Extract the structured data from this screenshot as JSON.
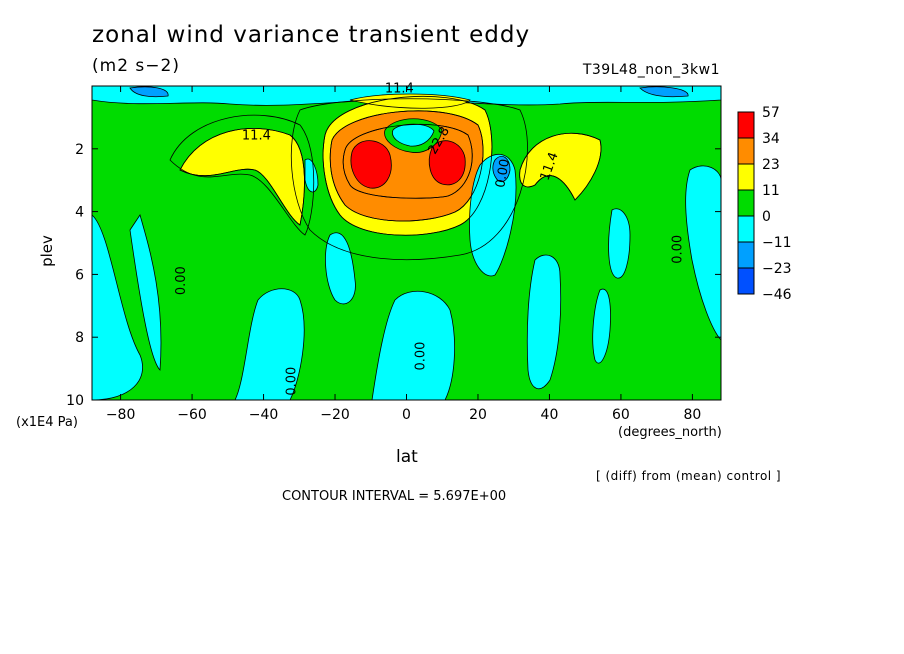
{
  "page": {
    "title": "zonal wind variance transient eddy",
    "units": "(m2 s−2)",
    "run_id": "T39L48_non_3kw1",
    "y_axis_label": "plev",
    "y_axis_multiplier": "(x1E4 Pa)",
    "x_axis_label": "lat",
    "x_axis_units": "(degrees_north)",
    "comparison_note": "[ (diff) from (mean) control ]",
    "contour_interval": "CONTOUR INTERVAL = 5.697E+00"
  },
  "chart_data": {
    "type": "heatmap",
    "title": "zonal wind variance transient eddy",
    "subtitle": "(m2 s−2)",
    "xlabel": "lat",
    "ylabel": "plev",
    "xlim": [
      -88,
      88
    ],
    "ylim": [
      10,
      0
    ],
    "x_ticks": [
      -80,
      -60,
      -40,
      -20,
      0,
      20,
      40,
      60,
      80
    ],
    "y_ticks": [
      2,
      4,
      6,
      8,
      10
    ],
    "colorbar": {
      "levels": [
        "57",
        "34",
        "23",
        "11",
        "0",
        "−11",
        "−23",
        "−46"
      ],
      "bins": [
        {
          "lo": 34,
          "hi": 57,
          "color": "#ff0000"
        },
        {
          "lo": 23,
          "hi": 34,
          "color": "#ff8c00"
        },
        {
          "lo": 11,
          "hi": 23,
          "color": "#ffff00"
        },
        {
          "lo": 0,
          "hi": 11,
          "color": "#00dc00"
        },
        {
          "lo": -11,
          "hi": 0,
          "color": "#00ffff"
        },
        {
          "lo": -23,
          "hi": -11,
          "color": "#00a0ff"
        },
        {
          "lo": -46,
          "hi": -23,
          "color": "#0050ff"
        }
      ]
    },
    "background_level_color": "#00dc00",
    "regions": [
      {
        "level": "11",
        "color": "#ffff00",
        "center": [
          -40,
          2.5
        ],
        "note": "SH subtropical maximum"
      },
      {
        "level": "11",
        "color": "#ffff00",
        "center": [
          40,
          2.5
        ],
        "note": "NH subtropical maximum"
      },
      {
        "level": "34",
        "color": "#ff0000",
        "center": [
          -13,
          2.2
        ],
        "note": "equatorial maximum west"
      },
      {
        "level": "34",
        "color": "#ff0000",
        "center": [
          13,
          2.2
        ],
        "note": "equatorial maximum east"
      },
      {
        "level": "−11",
        "color": "#00ffff",
        "center": [
          0,
          1.2
        ],
        "note": "equatorial upper minimum"
      },
      {
        "level": "−11",
        "color": "#00ffff",
        "center": [
          27,
          4.5
        ],
        "note": "NH subtropical minimum"
      },
      {
        "level": "−11",
        "color": "#00ffff",
        "center": [
          -85,
          7
        ],
        "note": "SH polar minimum"
      },
      {
        "level": "−11",
        "color": "#00ffff",
        "center": [
          -33,
          8.5
        ],
        "note": "SH midlatitude minimum"
      },
      {
        "level": "−11",
        "color": "#00ffff",
        "center": [
          5,
          8.7
        ],
        "note": "equatorial lower minimum"
      }
    ],
    "contour_labels": [
      "11.4",
      "11.4",
      "11.4",
      "22.8",
      "0.00",
      "0.00",
      "0.00",
      "0.00",
      "0.00"
    ]
  }
}
